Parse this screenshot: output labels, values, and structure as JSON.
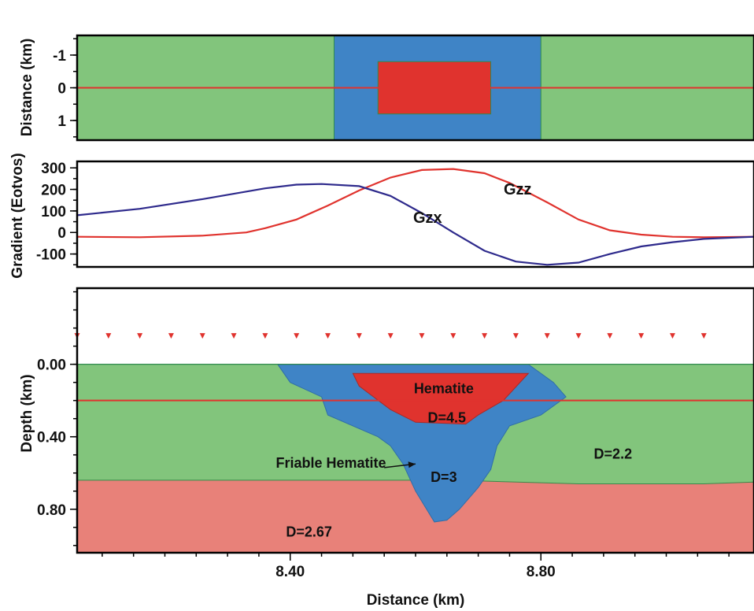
{
  "chart_data": [
    {
      "type": "area",
      "panel": "plan-view",
      "ylabel": "Distance (km)",
      "yticks": [
        "-1",
        "0",
        "1"
      ],
      "ylim": [
        -1.6,
        1.6
      ],
      "xlim": [
        8.06,
        9.14
      ],
      "profile_y": 0,
      "bodies": [
        {
          "material": "host",
          "x": [
            8.06,
            9.14
          ],
          "y": [
            -1.6,
            1.6
          ],
          "color": "#82c57c"
        },
        {
          "material": "friable-hematite",
          "x": [
            8.47,
            8.8
          ],
          "y": [
            -1.6,
            1.6
          ],
          "color": "#3f84c6"
        },
        {
          "material": "hematite",
          "x": [
            8.54,
            8.72
          ],
          "y": [
            -0.8,
            0.8
          ],
          "color": "#e0332e"
        }
      ],
      "colors": {
        "profile": "#e0332e"
      }
    },
    {
      "type": "line",
      "panel": "gradient",
      "ylabel": "Gradient (Eotvos)",
      "yticks": [
        "300",
        "200",
        "100",
        "0",
        "-100"
      ],
      "ylim": [
        -160,
        330
      ],
      "xlim": [
        8.06,
        9.14
      ],
      "series": [
        {
          "name": "Gzz",
          "color": "#e0332e",
          "x": [
            8.06,
            8.16,
            8.26,
            8.33,
            8.36,
            8.41,
            8.46,
            8.51,
            8.56,
            8.61,
            8.66,
            8.71,
            8.75,
            8.81,
            8.86,
            8.91,
            8.96,
            9.01,
            9.06,
            9.14
          ],
          "y": [
            -20,
            -22,
            -15,
            0,
            20,
            60,
            125,
            195,
            255,
            290,
            295,
            275,
            230,
            140,
            60,
            10,
            -10,
            -20,
            -22,
            -20
          ]
        },
        {
          "name": "Gzx",
          "color": "#2e2a8c",
          "x": [
            8.06,
            8.16,
            8.26,
            8.36,
            8.41,
            8.45,
            8.51,
            8.56,
            8.61,
            8.66,
            8.71,
            8.76,
            8.81,
            8.86,
            8.91,
            8.96,
            9.01,
            9.06,
            9.14
          ],
          "y": [
            80,
            110,
            155,
            205,
            222,
            225,
            215,
            170,
            90,
            0,
            -85,
            -135,
            -150,
            -140,
            -100,
            -65,
            -45,
            -30,
            -20
          ]
        }
      ]
    },
    {
      "type": "area",
      "panel": "cross-section",
      "ylabel": "Depth (km)",
      "xlabel": "Distance (km)",
      "yticks": [
        "0.00",
        "0.40",
        "0.80"
      ],
      "xticks": [
        "8.40",
        "8.80"
      ],
      "xlim": [
        8.06,
        9.14
      ],
      "ylim": [
        -0.42,
        1.04
      ],
      "stations_depth": -0.15,
      "profile_depth": 0.2,
      "stations_x": [
        8.06,
        8.16,
        8.26,
        8.36,
        8.46,
        8.56,
        8.66,
        8.76,
        8.86,
        8.96,
        9.06
      ],
      "colors": {
        "host": "#82c57c",
        "basement": "#e88179",
        "friable": "#3f84c6",
        "hematite": "#e0332e",
        "stations": "#e0332e",
        "profile": "#e0332e"
      },
      "annotations": [
        "Hematite",
        "D=4.5",
        "Friable Hematite",
        "D=3",
        "D=2.2",
        "D=2.67"
      ],
      "arrow": {
        "from": [
          8.55,
          0.57
        ],
        "to": [
          8.6,
          0.55
        ]
      },
      "host_body": {
        "x": [
          8.06,
          9.14
        ],
        "y": [
          0.0,
          0.64
        ]
      },
      "basement_top": {
        "x": [
          8.06,
          8.46,
          8.66,
          8.86,
          9.06,
          9.14
        ],
        "y": [
          0.64,
          0.64,
          0.64,
          0.66,
          0.66,
          0.65
        ]
      },
      "friable_body": {
        "x": [
          8.38,
          8.57,
          8.78,
          8.82,
          8.84,
          8.8,
          8.75,
          8.73,
          8.72,
          8.7,
          8.67,
          8.65,
          8.63,
          8.6,
          8.58,
          8.56,
          8.54,
          8.5,
          8.46,
          8.45,
          8.4
        ],
        "y": [
          0.0,
          0.0,
          0.0,
          0.1,
          0.18,
          0.28,
          0.34,
          0.45,
          0.58,
          0.68,
          0.8,
          0.86,
          0.87,
          0.7,
          0.55,
          0.45,
          0.4,
          0.34,
          0.28,
          0.18,
          0.1
        ]
      },
      "hematite_body": {
        "x": [
          8.5,
          8.78,
          8.74,
          8.7,
          8.68,
          8.6,
          8.56,
          8.51
        ],
        "y": [
          0.05,
          0.05,
          0.2,
          0.28,
          0.33,
          0.32,
          0.25,
          0.12
        ]
      }
    }
  ]
}
